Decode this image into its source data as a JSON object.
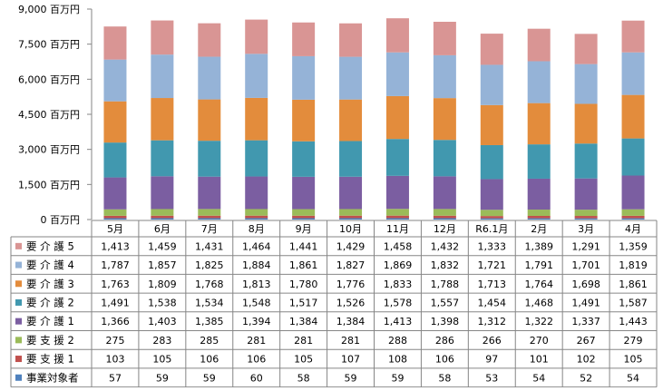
{
  "chart_data": {
    "type": "bar",
    "stacked": true,
    "categories": [
      "5月",
      "6月",
      "7月",
      "8月",
      "9月",
      "10月",
      "11月",
      "12月",
      "R6.1月",
      "2月",
      "3月",
      "4月"
    ],
    "y_unit": "百万円",
    "ylim": [
      0,
      9000
    ],
    "yticks": [
      0,
      1500,
      3000,
      4500,
      6000,
      7500,
      9000
    ],
    "ytick_labels": [
      "0 百万円",
      "1,500 百万円",
      "3,000 百万円",
      "4,500 百万円",
      "6,000 百万円",
      "7,500 百万円",
      "9,000 百万円"
    ],
    "grid": false,
    "legend": "data-table-left",
    "series": [
      {
        "name": "要 介 護 5",
        "color": "#D99594",
        "values": [
          1413,
          1459,
          1431,
          1464,
          1441,
          1429,
          1458,
          1432,
          1333,
          1389,
          1291,
          1359
        ]
      },
      {
        "name": "要 介 護 4",
        "color": "#95B3D7",
        "values": [
          1787,
          1857,
          1825,
          1884,
          1861,
          1827,
          1869,
          1832,
          1721,
          1791,
          1701,
          1819
        ]
      },
      {
        "name": "要 介 護 3",
        "color": "#E38C3C",
        "values": [
          1763,
          1809,
          1768,
          1813,
          1780,
          1776,
          1833,
          1788,
          1713,
          1764,
          1698,
          1861
        ]
      },
      {
        "name": "要 介 護 2",
        "color": "#4198AF",
        "values": [
          1491,
          1538,
          1534,
          1548,
          1517,
          1526,
          1578,
          1557,
          1454,
          1468,
          1491,
          1587
        ]
      },
      {
        "name": "要 介 護 1",
        "color": "#7B5EA1",
        "values": [
          1366,
          1403,
          1385,
          1394,
          1384,
          1384,
          1413,
          1398,
          1312,
          1322,
          1337,
          1443
        ]
      },
      {
        "name": "要 支 援 2",
        "color": "#9BBB59",
        "values": [
          275,
          283,
          285,
          281,
          281,
          281,
          288,
          286,
          266,
          270,
          267,
          279
        ]
      },
      {
        "name": "要 支 援 1",
        "color": "#C0504D",
        "values": [
          103,
          105,
          106,
          106,
          105,
          107,
          108,
          106,
          97,
          101,
          102,
          105
        ]
      },
      {
        "name": "事業対象者",
        "color": "#4F81BD",
        "values": [
          57,
          59,
          59,
          60,
          58,
          59,
          59,
          58,
          53,
          54,
          52,
          54
        ]
      }
    ]
  }
}
